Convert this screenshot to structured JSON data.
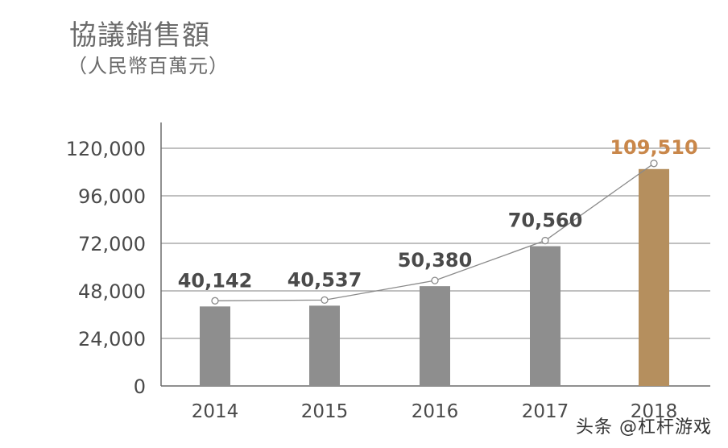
{
  "chart_data": {
    "type": "bar",
    "title": "協議銷售額",
    "subtitle": "（人民幣百萬元）",
    "categories": [
      "2014",
      "2015",
      "2016",
      "2017",
      "2018"
    ],
    "values": [
      40142,
      40537,
      50380,
      70560,
      109510
    ],
    "value_labels": [
      "40,142",
      "40,537",
      "50,380",
      "70,560",
      "109,510"
    ],
    "ylim": [
      0,
      120000
    ],
    "yticks": [
      0,
      24000,
      48000,
      72000,
      96000,
      120000
    ],
    "ytick_labels": [
      "0",
      "24,000",
      "48,000",
      "72,000",
      "96,000",
      "120,000"
    ],
    "grid": true,
    "overlay_line": true,
    "colors": {
      "bar": "#8e8e8e",
      "highlight_bar": "#b58f5e",
      "highlight_label": "#c9874a",
      "label": "#4a4a4a",
      "grid": "#9a9a9a",
      "axis": "#6b6b6b",
      "line": "#8a8a8a"
    },
    "highlight_index": 4
  },
  "watermark": "头条 @杠杆游戏"
}
